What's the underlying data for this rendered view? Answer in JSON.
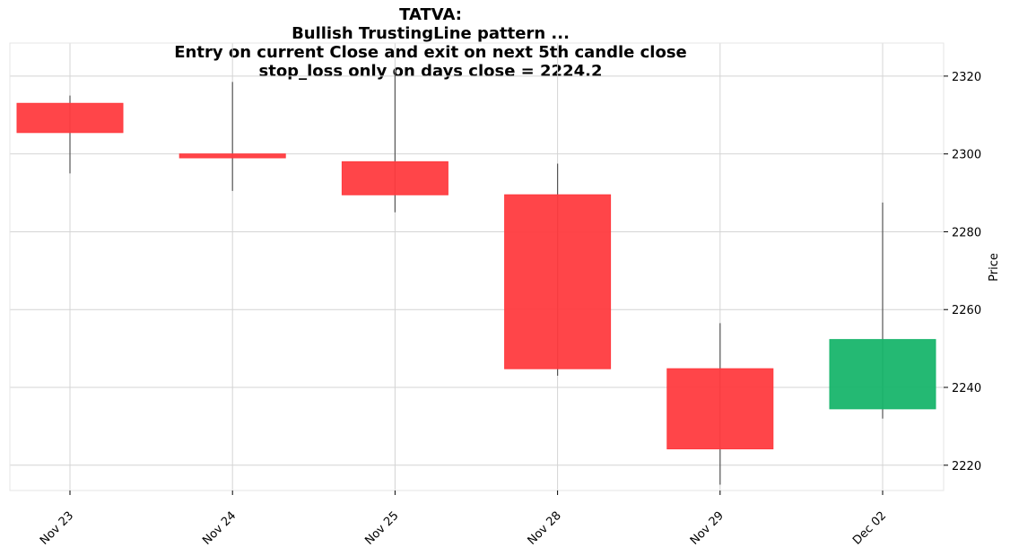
{
  "chart_data": {
    "type": "candlestick",
    "title_lines": [
      "TATVA:",
      "Bullish TrustingLine pattern ...",
      "Entry on current Close and exit on next 5th candle close",
      "stop_loss only on days close = 2224.2"
    ],
    "categories": [
      "Nov 23",
      "Nov 24",
      "Nov 25",
      "Nov 28",
      "Nov 29",
      "Dec 02"
    ],
    "candles": [
      {
        "date": "Nov 23",
        "open": 2313.0,
        "high": 2315.0,
        "low": 2295.0,
        "close": 2305.5
      },
      {
        "date": "Nov 24",
        "open": 2300.0,
        "high": 2318.5,
        "low": 2290.5,
        "close": 2299.0
      },
      {
        "date": "Nov 25",
        "open": 2298.0,
        "high": 2321.0,
        "low": 2285.0,
        "close": 2289.5
      },
      {
        "date": "Nov 28",
        "open": 2289.5,
        "high": 2297.5,
        "low": 2243.0,
        "close": 2244.8
      },
      {
        "date": "Nov 29",
        "open": 2244.8,
        "high": 2256.5,
        "low": 2215.0,
        "close": 2224.2
      },
      {
        "date": "Dec 02",
        "open": 2234.5,
        "high": 2287.5,
        "low": 2232.0,
        "close": 2252.3
      }
    ],
    "ylabel": "Price",
    "yticks": [
      2220,
      2240,
      2260,
      2280,
      2300,
      2320
    ],
    "ylim": [
      2213.5,
      2328.5
    ],
    "grid": true,
    "colors": {
      "up": "#18b56c",
      "down": "#ff3b3f",
      "wick": "#555555",
      "grid": "#d4d4d4",
      "axis": "#e6e6e6"
    }
  }
}
